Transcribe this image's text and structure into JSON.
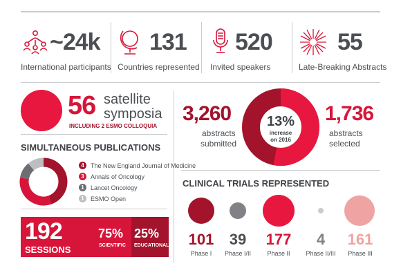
{
  "stats": [
    {
      "value": "~24k",
      "label": "International participants",
      "icon": "people-network-icon"
    },
    {
      "value": "131",
      "label": "Countries represented",
      "icon": "globe-icon"
    },
    {
      "value": "520",
      "label": "Invited speakers",
      "icon": "microphone-icon"
    },
    {
      "value": "55",
      "label": "Late-Breaking Abstracts",
      "icon": "burst-icon"
    }
  ],
  "satellite": {
    "value": "56",
    "line1": "satellite",
    "line2": "symposia",
    "sub": "INCLUDING 2 ESMO COLLOQUIA"
  },
  "publications": {
    "title": "SIMULTANEOUS PUBLICATIONS",
    "items": [
      {
        "count": "4",
        "name": "The New England Journal of Medicine",
        "color": "#a3132c"
      },
      {
        "count": "3",
        "name": "Annals of Oncology",
        "color": "#d7153a"
      },
      {
        "count": "1",
        "name": "Lancet Oncology",
        "color": "#6d6e71"
      },
      {
        "count": "1",
        "name": "ESMO Open",
        "color": "#bcbec0"
      }
    ]
  },
  "sessions": {
    "value": "192",
    "label": "SESSIONS",
    "scientific_pct": "75%",
    "scientific_label": "SCIENTIFIC",
    "educational_pct": "25%",
    "educational_label": "EDUCATIONAL"
  },
  "abstracts": {
    "submitted_value": "3,260",
    "submitted_label1": "abstracts",
    "submitted_label2": "submitted",
    "selected_value": "1,736",
    "selected_label1": "abstracts",
    "selected_label2": "selected",
    "increase_pct": "13%",
    "increase_label1": "increase",
    "increase_label2": "on 2016"
  },
  "trials": {
    "title": "CLINICAL TRIALS REPRESENTED",
    "items": [
      {
        "value": "101",
        "phase": "Phase I",
        "color": "#a3132c"
      },
      {
        "value": "39",
        "phase": "Phase I/II",
        "color": "#808285"
      },
      {
        "value": "177",
        "phase": "Phase II",
        "color": "#e8173f"
      },
      {
        "value": "4",
        "phase": "Phase II/III",
        "color": "#c9cbcd"
      },
      {
        "value": "161",
        "phase": "Phase III",
        "color": "#f0a3a3"
      }
    ]
  },
  "colors": {
    "accent": "#d7153a",
    "dark_red": "#a3132c",
    "grey": "#4b4f54"
  }
}
